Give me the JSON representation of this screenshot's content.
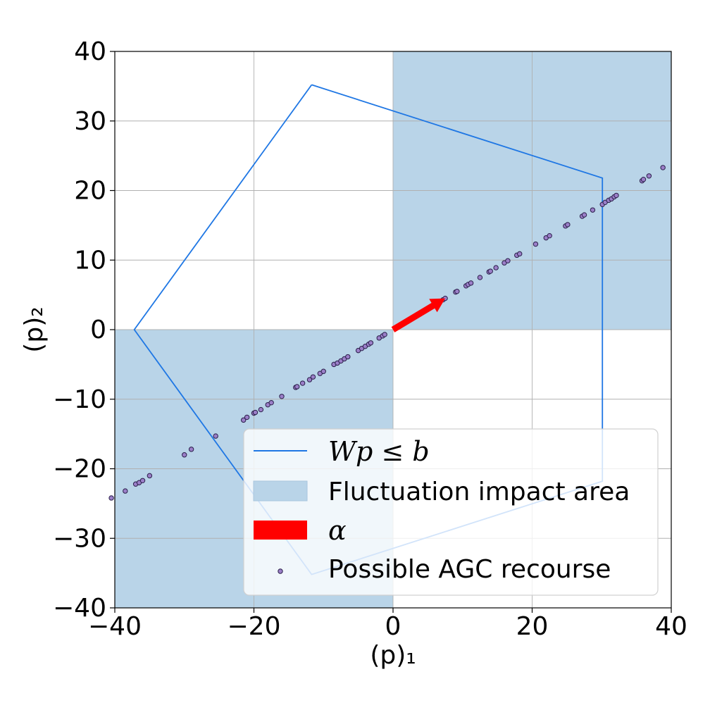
{
  "chart_data": {
    "type": "scatter",
    "xlabel": "(p)₁",
    "ylabel": "(p)₂",
    "xlim": [
      -40,
      40
    ],
    "ylim": [
      -40,
      40
    ],
    "xticks": [
      -40,
      -20,
      0,
      20,
      40
    ],
    "yticks": [
      -40,
      -30,
      -20,
      -10,
      0,
      10,
      20,
      30,
      40
    ],
    "xtick_labels": [
      "−40",
      "−20",
      "0",
      "20",
      "40"
    ],
    "ytick_labels": [
      "−40",
      "−30",
      "−20",
      "−10",
      "0",
      "10",
      "20",
      "30",
      "40"
    ],
    "grid": true,
    "legend_placement": "lower-right",
    "colors": {
      "polygon": "#1f77e4",
      "area": "#b9d4e8",
      "arrow": "#ff0000",
      "points_fill": "#9b7fc8",
      "points_edge": "#2a1f4a"
    },
    "fluctuation_areas": [
      {
        "x": [
          0,
          40
        ],
        "y": [
          0,
          40
        ]
      },
      {
        "x": [
          -40,
          0
        ],
        "y": [
          -40,
          0
        ]
      }
    ],
    "polygon": [
      [
        -11.7,
        35.2
      ],
      [
        30.1,
        21.8
      ],
      [
        30.1,
        -21.8
      ],
      [
        -11.7,
        -35.2
      ],
      [
        -37.2,
        0.0
      ],
      [
        -11.7,
        35.2
      ]
    ],
    "arrow": {
      "from": [
        0,
        0
      ],
      "to": [
        7.5,
        4.5
      ]
    },
    "points_x": [
      -40.5,
      -38.5,
      -37,
      -36.5,
      -36,
      -35,
      -30,
      -29,
      -25.5,
      -21.5,
      -21,
      -20,
      -19.8,
      -19,
      -18,
      -17.5,
      -16,
      -14,
      -13.8,
      -13,
      -12,
      -11.5,
      -10.5,
      -10,
      -8.5,
      -8,
      -7.5,
      -7,
      -6.5,
      -5,
      -4.5,
      -4,
      -3.5,
      -3.2,
      -2,
      -1.5,
      -1.2,
      0.5,
      1,
      3,
      4.8,
      5,
      6,
      6.5,
      7.2,
      7.5,
      9,
      9.2,
      10.5,
      10.8,
      11.2,
      12.5,
      13.8,
      14,
      14.8,
      16,
      16.5,
      17.8,
      18.2,
      20.5,
      22,
      22.5,
      24.8,
      25.1,
      27.2,
      27.5,
      28.7,
      30.1,
      30.5,
      31,
      31.4,
      31.8,
      32.1,
      35.8,
      36,
      36.8,
      38.8
    ],
    "points_y": [
      -24.2,
      -23.2,
      -22.2,
      -22,
      -21.7,
      -21,
      -18,
      -17.2,
      -15.3,
      -13,
      -12.6,
      -12,
      -11.9,
      -11.5,
      -10.8,
      -10.5,
      -9.6,
      -8.3,
      -8.2,
      -7.7,
      -7.2,
      -6.8,
      -6.3,
      -6,
      -5,
      -4.8,
      -4.5,
      -4.2,
      -3.9,
      -3,
      -2.7,
      -2.4,
      -2.1,
      -1.9,
      -1.2,
      -0.9,
      -0.7,
      0.3,
      0.6,
      1.8,
      2.9,
      3,
      3.6,
      3.9,
      4.3,
      4.5,
      5.4,
      5.5,
      6.3,
      6.5,
      6.7,
      7.5,
      8.3,
      8.4,
      8.9,
      9.6,
      9.9,
      10.7,
      10.9,
      12.3,
      13.2,
      13.5,
      14.9,
      15.1,
      16.3,
      16.5,
      17.2,
      18,
      18.3,
      18.6,
      18.8,
      19.1,
      19.3,
      21.4,
      21.6,
      22.1,
      23.3
    ],
    "legend": [
      {
        "kind": "line",
        "label": "Wp ≤ b"
      },
      {
        "kind": "patch",
        "label": "Fluctuation impact area"
      },
      {
        "kind": "arrow",
        "label": "α"
      },
      {
        "kind": "marker",
        "label": "Possible AGC recourse"
      }
    ]
  }
}
